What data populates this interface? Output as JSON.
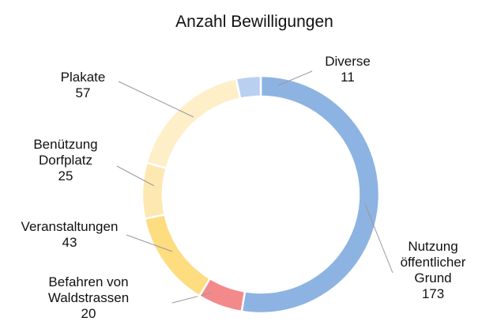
{
  "chart_data": {
    "type": "donut",
    "title": "Anzahl Bewilligungen",
    "categories": [
      "Nutzung öffentlicher Grund",
      "Befahren von Waldstrassen",
      "Veranstaltungen",
      "Benützung Dorfplatz",
      "Plakate",
      "Diverse"
    ],
    "values": [
      173,
      20,
      43,
      25,
      57,
      11
    ],
    "colors": [
      "#8db3e2",
      "#f4898b",
      "#fedc80",
      "#fee8b2",
      "#feefc9",
      "#b9d0f0"
    ]
  }
}
